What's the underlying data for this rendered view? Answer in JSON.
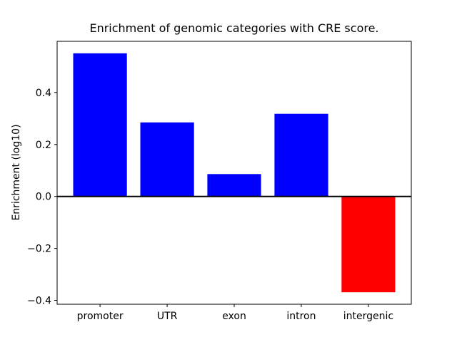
{
  "figure": {
    "title": "Enrichment of genomic categories with CRE score.",
    "ylabel": "Enrichment (log10)"
  },
  "chart_data": {
    "type": "bar",
    "title": "Enrichment of genomic categories with CRE score.",
    "xlabel": "",
    "ylabel": "Enrichment (log10)",
    "categories": [
      "promoter",
      "UTR",
      "exon",
      "intron",
      "intergenic"
    ],
    "values": [
      0.551,
      0.285,
      0.086,
      0.318,
      -0.369
    ],
    "bar_width": 0.8,
    "positive_color": "#0000ff",
    "negative_color": "#ff0000",
    "axis_color": "#000000",
    "background_color": "#ffffff",
    "ylim": [
      -0.415,
      0.597
    ],
    "xlim": [
      -0.64,
      4.64
    ],
    "yticks": [
      {
        "value": 0.4,
        "label": "0.4"
      },
      {
        "value": 0.2,
        "label": "0.2"
      },
      {
        "value": 0.0,
        "label": "0.0"
      },
      {
        "value": -0.2,
        "label": "−0.2"
      },
      {
        "value": -0.4,
        "label": "−0.4"
      }
    ],
    "zero_line": true,
    "grid": false,
    "legend": null
  }
}
